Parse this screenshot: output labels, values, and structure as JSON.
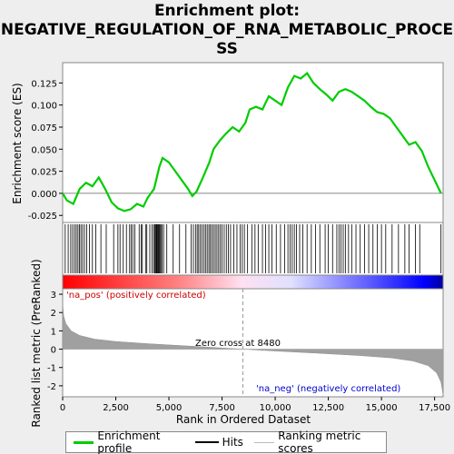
{
  "title_line1": "Enrichment plot:",
  "title_line2": "NEGATIVE_REGULATION_OF_RNA_METABOLIC_PROCE",
  "title_line3": "SS",
  "ylabel_top": "Enrichment score (ES)",
  "ylabel_bottom": "Ranked list metric (PreRanked)",
  "xlabel": "Rank in Ordered Dataset",
  "label_pos": "'na_pos' (positively correlated)",
  "label_neg": "'na_neg' (negatively correlated)",
  "zero_cross_label": "Zero cross at 8480",
  "legend": {
    "enrichment": "Enrichment profile",
    "hits": "Hits",
    "ranking": "Ranking metric scores"
  },
  "colors": {
    "enrichment_line": "#00cc00",
    "hits": "#000000",
    "ranking_fill": "#a0a0a0",
    "pos_label": "#cc0000",
    "neg_label": "#0000cc"
  },
  "chart_data": {
    "type": "line",
    "x_max": 17900,
    "zero_cross": 8480,
    "xticks": [
      0,
      2500,
      5000,
      7500,
      10000,
      12500,
      15000,
      17500
    ],
    "xtick_labels": [
      "0",
      "2,500",
      "5,000",
      "7,500",
      "10,000",
      "12,500",
      "15,000",
      "17,500"
    ],
    "es_ylim": [
      -0.033,
      0.148
    ],
    "es_yticks": [
      -0.025,
      0.0,
      0.025,
      0.05,
      0.075,
      0.1,
      0.125
    ],
    "es_ytick_labels": [
      "-0.025",
      "0.000",
      "0.025",
      "0.050",
      "0.075",
      "0.100",
      "0.125"
    ],
    "es_profile": [
      [
        0,
        0.0
      ],
      [
        200,
        -0.008
      ],
      [
        500,
        -0.012
      ],
      [
        800,
        0.005
      ],
      [
        1100,
        0.012
      ],
      [
        1400,
        0.008
      ],
      [
        1700,
        0.018
      ],
      [
        2000,
        0.005
      ],
      [
        2300,
        -0.01
      ],
      [
        2600,
        -0.017
      ],
      [
        2900,
        -0.02
      ],
      [
        3200,
        -0.018
      ],
      [
        3500,
        -0.012
      ],
      [
        3800,
        -0.015
      ],
      [
        4000,
        -0.005
      ],
      [
        4300,
        0.005
      ],
      [
        4550,
        0.03
      ],
      [
        4700,
        0.04
      ],
      [
        5000,
        0.035
      ],
      [
        5300,
        0.025
      ],
      [
        5600,
        0.015
      ],
      [
        5900,
        0.005
      ],
      [
        6100,
        -0.003
      ],
      [
        6300,
        0.002
      ],
      [
        6600,
        0.018
      ],
      [
        6900,
        0.035
      ],
      [
        7100,
        0.05
      ],
      [
        7400,
        0.06
      ],
      [
        7700,
        0.068
      ],
      [
        8000,
        0.075
      ],
      [
        8300,
        0.07
      ],
      [
        8600,
        0.08
      ],
      [
        8800,
        0.095
      ],
      [
        9100,
        0.098
      ],
      [
        9400,
        0.095
      ],
      [
        9700,
        0.11
      ],
      [
        10000,
        0.105
      ],
      [
        10300,
        0.1
      ],
      [
        10600,
        0.12
      ],
      [
        10900,
        0.133
      ],
      [
        11200,
        0.13
      ],
      [
        11500,
        0.136
      ],
      [
        11800,
        0.125
      ],
      [
        12100,
        0.118
      ],
      [
        12400,
        0.112
      ],
      [
        12700,
        0.105
      ],
      [
        13000,
        0.115
      ],
      [
        13300,
        0.118
      ],
      [
        13600,
        0.115
      ],
      [
        13900,
        0.11
      ],
      [
        14200,
        0.105
      ],
      [
        14500,
        0.098
      ],
      [
        14800,
        0.092
      ],
      [
        15100,
        0.09
      ],
      [
        15400,
        0.085
      ],
      [
        15700,
        0.075
      ],
      [
        16000,
        0.065
      ],
      [
        16300,
        0.055
      ],
      [
        16600,
        0.058
      ],
      [
        16900,
        0.048
      ],
      [
        17200,
        0.03
      ],
      [
        17500,
        0.015
      ],
      [
        17800,
        0.0
      ]
    ],
    "hits": [
      120,
      260,
      380,
      470,
      560,
      640,
      720,
      790,
      860,
      940,
      1030,
      1130,
      1260,
      1400,
      1560,
      1800,
      2050,
      2400,
      2600,
      2700,
      2850,
      3000,
      3150,
      3230,
      3300,
      3400,
      3600,
      3700,
      3750,
      3900,
      3960,
      4100,
      4200,
      4280,
      4330,
      4370,
      4410,
      4440,
      4480,
      4510,
      4550,
      4580,
      4620,
      4680,
      4750,
      4900,
      5200,
      5500,
      5800,
      6050,
      6150,
      6250,
      6330,
      6400,
      6480,
      6560,
      6650,
      6720,
      6800,
      6880,
      6950,
      7020,
      7100,
      7180,
      7260,
      7340,
      7420,
      7500,
      7600,
      7700,
      7800,
      7900,
      8050,
      8200,
      8350,
      8450,
      8550,
      8700,
      8900,
      9050,
      9200,
      9400,
      9550,
      9700,
      9850,
      10050,
      10250,
      10450,
      10600,
      10700,
      10800,
      10900,
      11000,
      11150,
      11300,
      11500,
      11700,
      11900,
      12100,
      12350,
      12500,
      12700,
      12900,
      13000,
      13100,
      13200,
      13300,
      13450,
      13600,
      13800,
      14000,
      14200,
      14400,
      14600,
      14800,
      15000,
      15200,
      15500,
      15800,
      16100,
      16300,
      16600,
      16800,
      17800
    ],
    "metric_ylim": [
      -2.6,
      3.3
    ],
    "metric_yticks": [
      -2,
      -1,
      0,
      1,
      2,
      3
    ],
    "metric_ytick_labels": [
      "-2",
      "-1",
      "0",
      "1",
      "2",
      "3"
    ],
    "metric_curve": [
      [
        0,
        2.5
      ],
      [
        50,
        1.8
      ],
      [
        150,
        1.4
      ],
      [
        400,
        1.0
      ],
      [
        800,
        0.75
      ],
      [
        1500,
        0.55
      ],
      [
        2500,
        0.42
      ],
      [
        4000,
        0.3
      ],
      [
        5500,
        0.2
      ],
      [
        7000,
        0.1
      ],
      [
        8480,
        0.0
      ],
      [
        10000,
        -0.1
      ],
      [
        12000,
        -0.22
      ],
      [
        14000,
        -0.35
      ],
      [
        15500,
        -0.48
      ],
      [
        16500,
        -0.65
      ],
      [
        17200,
        -0.9
      ],
      [
        17600,
        -1.3
      ],
      [
        17800,
        -1.8
      ],
      [
        17900,
        -2.5
      ]
    ]
  }
}
